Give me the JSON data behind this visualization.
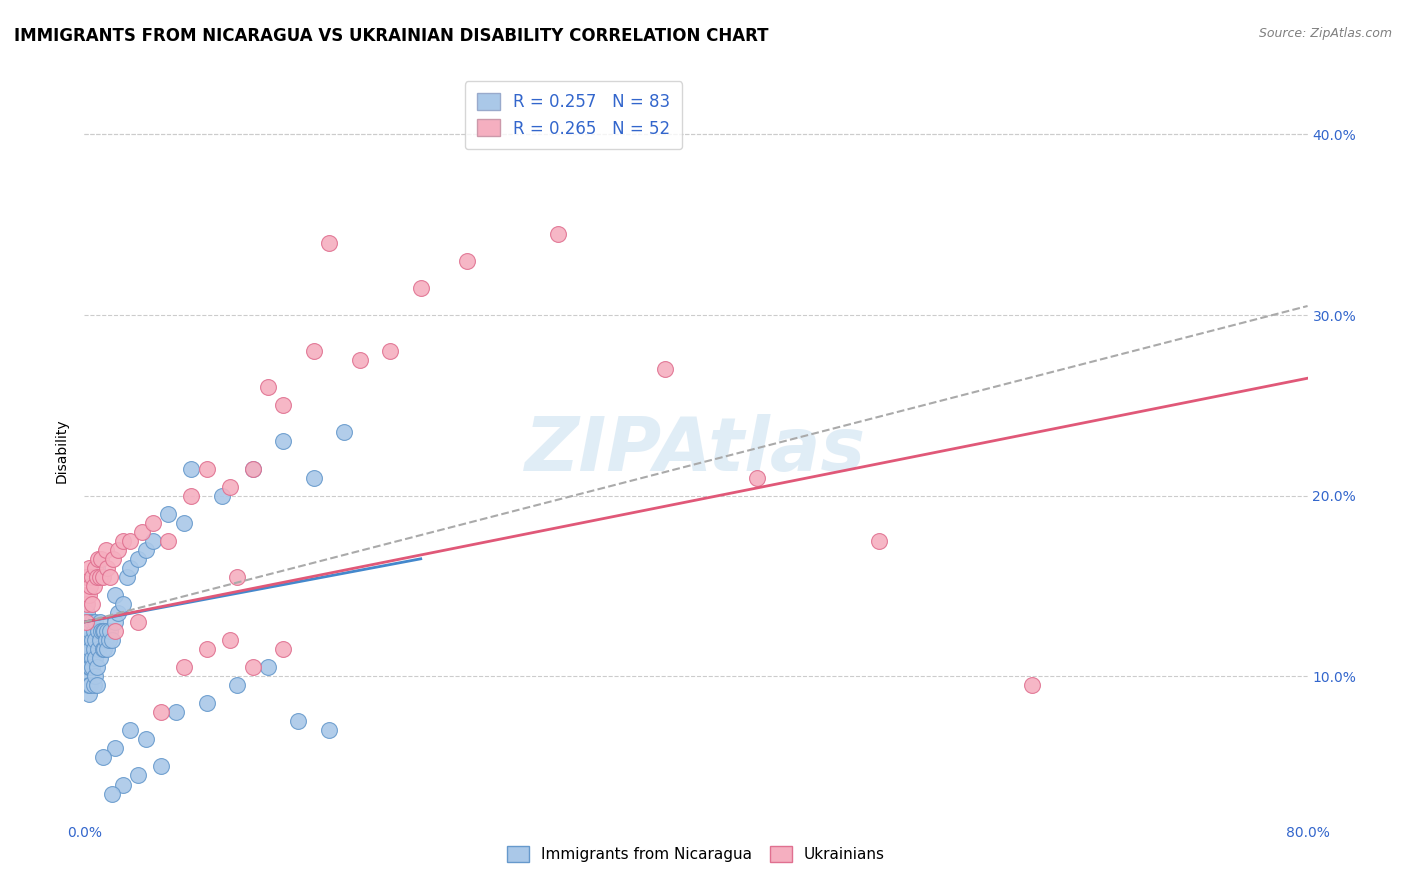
{
  "title": "IMMIGRANTS FROM NICARAGUA VS UKRAINIAN DISABILITY CORRELATION CHART",
  "source_text": "Source: ZipAtlas.com",
  "ylabel": "Disability",
  "xlim": [
    0.0,
    0.8
  ],
  "ylim": [
    0.02,
    0.43
  ],
  "yticks": [
    0.1,
    0.2,
    0.3,
    0.4
  ],
  "yticklabels_right": [
    "10.0%",
    "20.0%",
    "30.0%",
    "40.0%"
  ],
  "watermark": "ZIPAtlas",
  "series1_color": "#aac8e8",
  "series1_edge": "#6699cc",
  "series2_color": "#f5afc0",
  "series2_edge": "#e07090",
  "trend1_color": "#4488cc",
  "trend2_color": "#e05878",
  "trend_ref_color": "#aaaaaa",
  "legend_R1": "R = 0.257",
  "legend_N1": "N = 83",
  "legend_R2": "R = 0.265",
  "legend_N2": "N = 52",
  "legend_color1": "#aac8e8",
  "legend_color2": "#f5afc0",
  "legend_text_color": "#3366cc",
  "trend1_x0": 0.0,
  "trend1_y0": 0.13,
  "trend1_x1": 0.22,
  "trend1_y1": 0.165,
  "trend2_x0": 0.0,
  "trend2_y0": 0.13,
  "trend2_x1": 0.8,
  "trend2_y1": 0.265,
  "trend_ref_x0": 0.0,
  "trend_ref_y0": 0.13,
  "trend_ref_x1": 0.8,
  "trend_ref_y1": 0.305,
  "grid_color": "#cccccc",
  "bg_color": "#ffffff",
  "title_fontsize": 12,
  "label_fontsize": 10,
  "tick_fontsize": 10,
  "series1_x": [
    0.001,
    0.001,
    0.001,
    0.001,
    0.001,
    0.002,
    0.002,
    0.002,
    0.002,
    0.002,
    0.002,
    0.002,
    0.003,
    0.003,
    0.003,
    0.003,
    0.003,
    0.003,
    0.004,
    0.004,
    0.004,
    0.004,
    0.005,
    0.005,
    0.005,
    0.005,
    0.006,
    0.006,
    0.006,
    0.007,
    0.007,
    0.007,
    0.007,
    0.008,
    0.008,
    0.009,
    0.009,
    0.01,
    0.01,
    0.01,
    0.011,
    0.012,
    0.012,
    0.013,
    0.013,
    0.014,
    0.015,
    0.015,
    0.016,
    0.017,
    0.018,
    0.02,
    0.02,
    0.022,
    0.025,
    0.028,
    0.03,
    0.035,
    0.04,
    0.045,
    0.055,
    0.065,
    0.07,
    0.09,
    0.11,
    0.13,
    0.15,
    0.17,
    0.02,
    0.03,
    0.04,
    0.06,
    0.08,
    0.1,
    0.12,
    0.14,
    0.16,
    0.05,
    0.035,
    0.025,
    0.018,
    0.012,
    0.008
  ],
  "series1_y": [
    0.11,
    0.12,
    0.13,
    0.14,
    0.105,
    0.095,
    0.115,
    0.125,
    0.135,
    0.145,
    0.1,
    0.155,
    0.09,
    0.11,
    0.12,
    0.13,
    0.105,
    0.095,
    0.105,
    0.115,
    0.125,
    0.095,
    0.11,
    0.12,
    0.13,
    0.105,
    0.095,
    0.115,
    0.125,
    0.1,
    0.11,
    0.12,
    0.13,
    0.105,
    0.095,
    0.115,
    0.125,
    0.11,
    0.12,
    0.13,
    0.125,
    0.115,
    0.125,
    0.115,
    0.125,
    0.12,
    0.115,
    0.125,
    0.12,
    0.125,
    0.12,
    0.13,
    0.145,
    0.135,
    0.14,
    0.155,
    0.16,
    0.165,
    0.17,
    0.175,
    0.19,
    0.185,
    0.215,
    0.2,
    0.215,
    0.23,
    0.21,
    0.235,
    0.06,
    0.07,
    0.065,
    0.08,
    0.085,
    0.095,
    0.105,
    0.075,
    0.07,
    0.05,
    0.045,
    0.04,
    0.035,
    0.055,
    0.16
  ],
  "series2_x": [
    0.001,
    0.001,
    0.002,
    0.002,
    0.003,
    0.003,
    0.004,
    0.005,
    0.005,
    0.006,
    0.007,
    0.008,
    0.009,
    0.01,
    0.011,
    0.012,
    0.014,
    0.015,
    0.017,
    0.019,
    0.022,
    0.025,
    0.03,
    0.038,
    0.045,
    0.055,
    0.07,
    0.08,
    0.095,
    0.11,
    0.13,
    0.15,
    0.18,
    0.22,
    0.1,
    0.12,
    0.16,
    0.2,
    0.25,
    0.31,
    0.38,
    0.44,
    0.52,
    0.62,
    0.02,
    0.035,
    0.05,
    0.065,
    0.08,
    0.095,
    0.11,
    0.13
  ],
  "series2_y": [
    0.13,
    0.145,
    0.14,
    0.155,
    0.145,
    0.16,
    0.15,
    0.14,
    0.155,
    0.15,
    0.16,
    0.155,
    0.165,
    0.155,
    0.165,
    0.155,
    0.17,
    0.16,
    0.155,
    0.165,
    0.17,
    0.175,
    0.175,
    0.18,
    0.185,
    0.175,
    0.2,
    0.215,
    0.205,
    0.215,
    0.25,
    0.28,
    0.275,
    0.315,
    0.155,
    0.26,
    0.34,
    0.28,
    0.33,
    0.345,
    0.27,
    0.21,
    0.175,
    0.095,
    0.125,
    0.13,
    0.08,
    0.105,
    0.115,
    0.12,
    0.105,
    0.115
  ]
}
